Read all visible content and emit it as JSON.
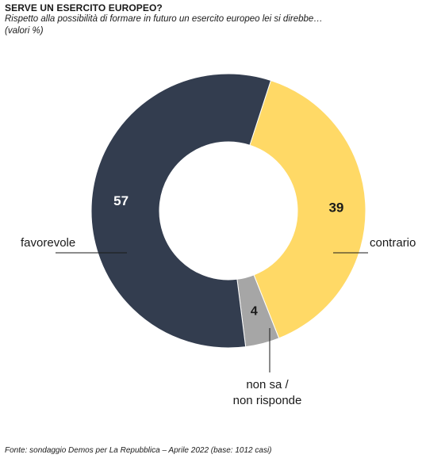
{
  "header": {
    "title": "SERVE UN ESERCITO EUROPEO?",
    "subtitle": "Rispetto alla possibilità di formare in futuro un esercito europeo lei si direbbe…",
    "unit": "(valori %)"
  },
  "footer": {
    "source": "Fonte: sondaggio Demos per La Repubblica – Aprile 2022 (base: 1012 casi)"
  },
  "chart_data": {
    "type": "pie",
    "variant": "donut",
    "title": "SERVE UN ESERCITO EUROPEO?",
    "slices": [
      {
        "label": "contrario",
        "value": 39,
        "color": "#FFD966",
        "value_color": "#1a1a1a"
      },
      {
        "label": "non sa / non risponde",
        "label_lines": [
          "non sa /",
          "non risponde"
        ],
        "value": 4,
        "color": "#A6A6A6",
        "value_color": "#1a1a1a"
      },
      {
        "label": "favorevole",
        "value": 57,
        "color": "#333D4F",
        "value_color": "#ffffff"
      }
    ]
  }
}
